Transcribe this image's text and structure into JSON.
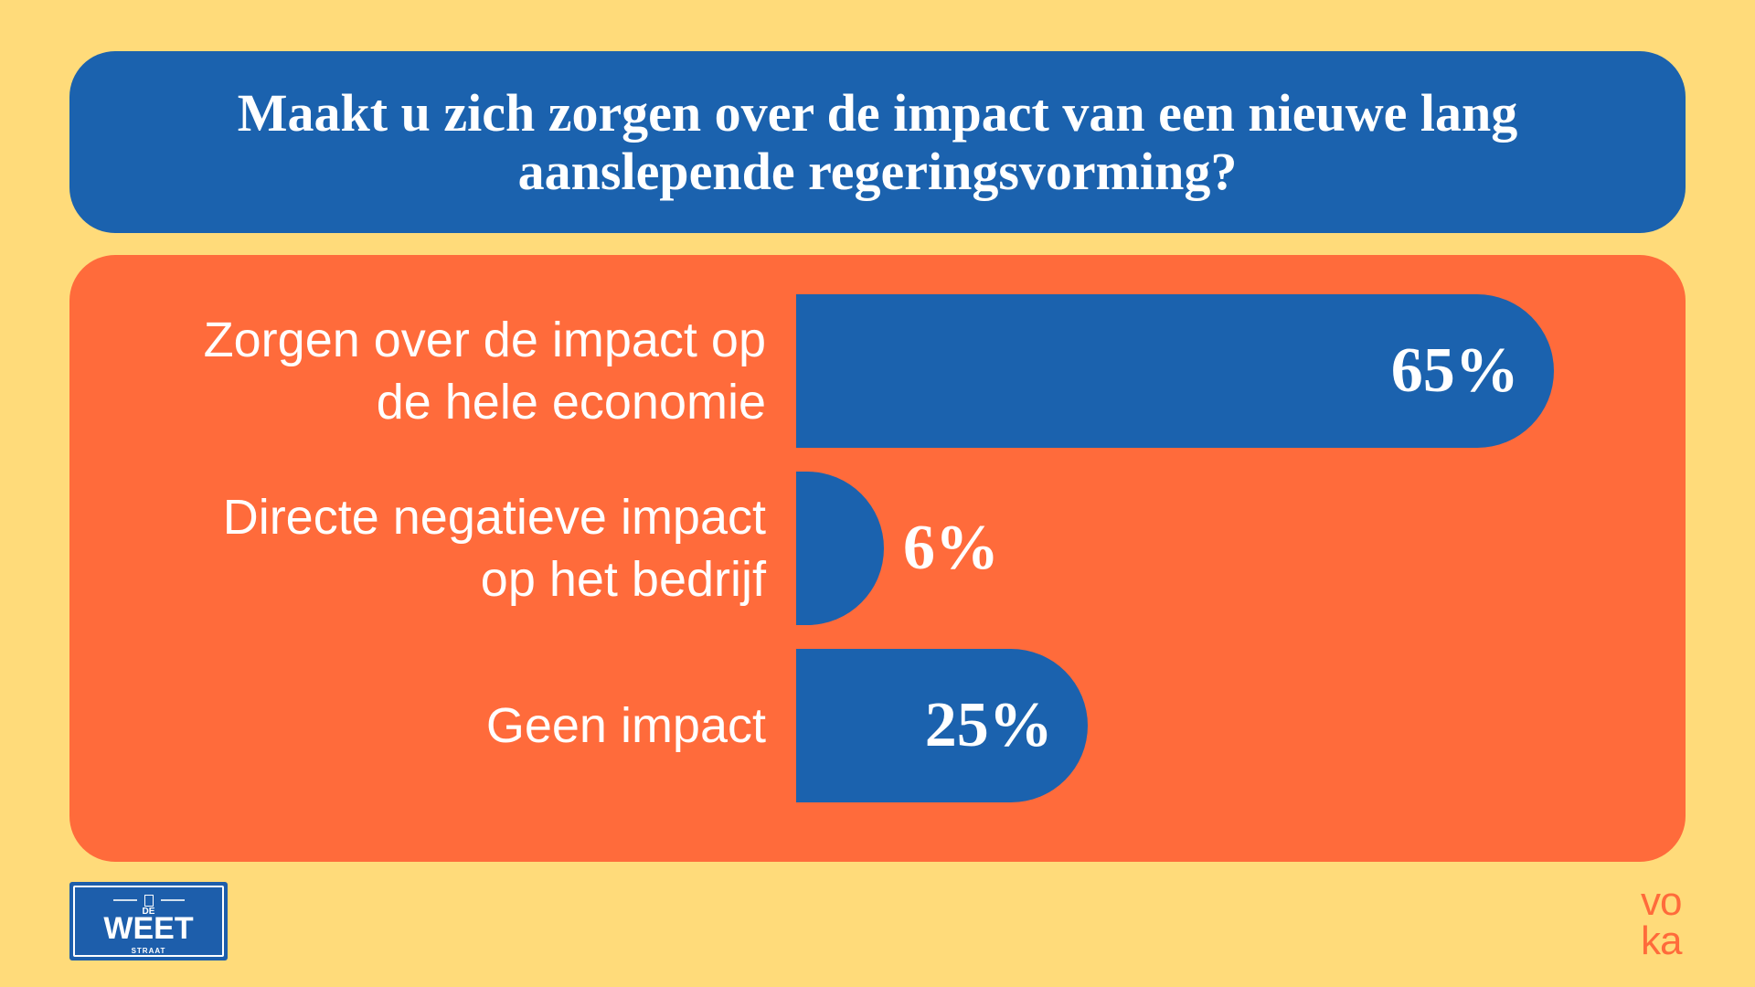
{
  "colors": {
    "background": "#FFDB7A",
    "title_box": "#1B62AE",
    "panel": "#FF6B3B",
    "bar": "#1B62AE",
    "text": "#FFFFFF",
    "voka": "#FF6B3B",
    "sign": "#1D5EAB"
  },
  "chart_data": {
    "type": "bar",
    "horizontal": true,
    "title": "Maakt u zich zorgen over de impact van een nieuwe lang aanslepende regeringsvorming?",
    "categories": [
      "Zorgen over de impact op de hele economie",
      "Directe negatieve impact op het bedrijf",
      "Geen impact"
    ],
    "values": [
      65,
      6,
      25
    ],
    "value_labels": [
      "65%",
      "6%",
      "25%"
    ],
    "grid": false
  },
  "logos": {
    "de_weet_straat": {
      "top": "DE",
      "main": "WEET",
      "bottom": "STRAAT"
    },
    "voka": {
      "line1": "vo",
      "line2": "ka"
    }
  }
}
